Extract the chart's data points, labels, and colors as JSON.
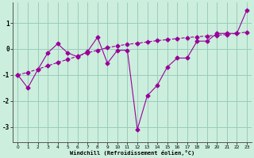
{
  "line1_x": [
    0,
    1,
    2,
    3,
    4,
    5,
    6,
    7,
    8,
    9,
    10,
    11,
    12,
    13,
    14,
    15,
    16,
    17,
    18,
    19,
    20,
    21,
    22,
    23
  ],
  "line1_y": [
    -1.0,
    -1.5,
    -0.8,
    -0.15,
    0.2,
    -0.15,
    -0.3,
    -0.1,
    0.45,
    -0.55,
    -0.05,
    -0.05,
    -3.1,
    -1.8,
    -1.4,
    -0.7,
    -0.35,
    -0.35,
    0.3,
    0.3,
    0.6,
    0.6,
    0.6,
    1.5
  ],
  "line2_x": [
    0,
    1,
    2,
    3,
    4,
    5,
    6,
    7,
    8,
    9,
    10,
    11,
    12,
    13,
    14,
    15,
    16,
    17,
    18,
    19,
    20,
    21,
    22,
    23
  ],
  "line2_y": [
    -1.0,
    -0.9,
    -0.78,
    -0.65,
    -0.52,
    -0.4,
    -0.28,
    -0.15,
    -0.05,
    0.05,
    0.12,
    0.18,
    0.22,
    0.27,
    0.32,
    0.36,
    0.4,
    0.44,
    0.47,
    0.5,
    0.53,
    0.56,
    0.6,
    0.65
  ],
  "line_color": "#990099",
  "bg_color": "#cceedd",
  "grid_color": "#99ccbb",
  "xlabel": "Windchill (Refroidissement éolien,°C)",
  "xlim": [
    -0.5,
    23.5
  ],
  "ylim": [
    -3.6,
    1.8
  ],
  "yticks": [
    -3,
    -2,
    -1,
    0,
    1
  ],
  "xticks": [
    0,
    1,
    2,
    3,
    4,
    5,
    6,
    7,
    8,
    9,
    10,
    11,
    12,
    13,
    14,
    15,
    16,
    17,
    18,
    19,
    20,
    21,
    22,
    23
  ]
}
